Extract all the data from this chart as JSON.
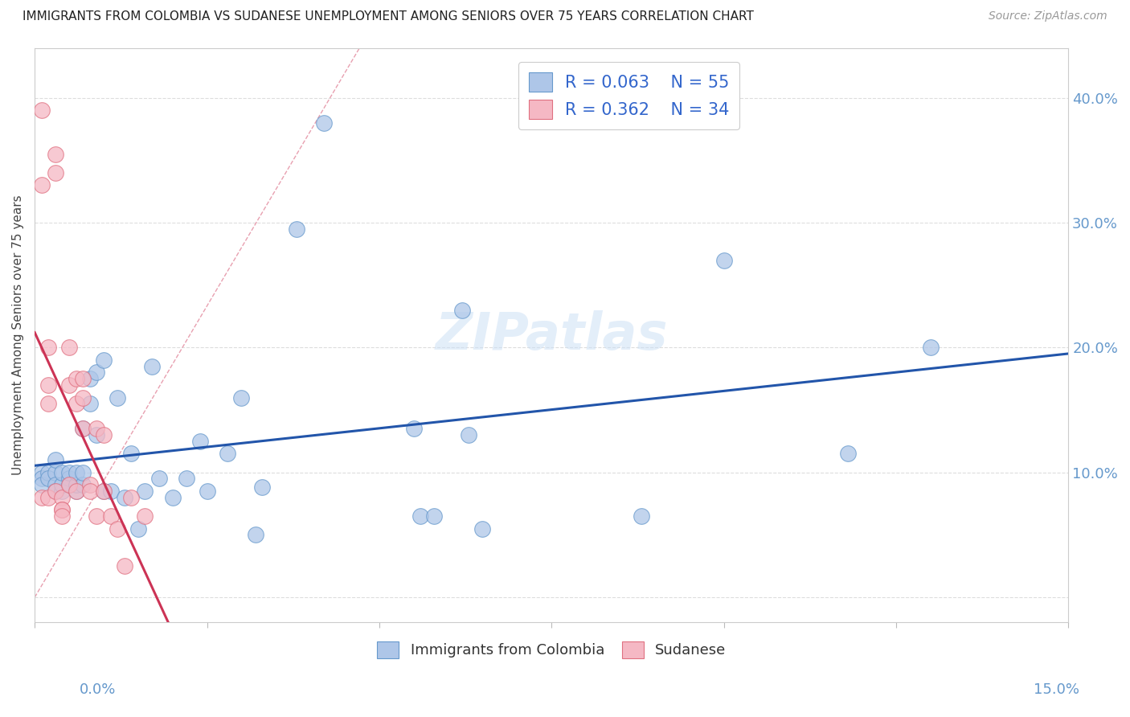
{
  "title": "IMMIGRANTS FROM COLOMBIA VS SUDANESE UNEMPLOYMENT AMONG SENIORS OVER 75 YEARS CORRELATION CHART",
  "source": "Source: ZipAtlas.com",
  "ylabel": "Unemployment Among Seniors over 75 years",
  "xlim": [
    0.0,
    0.15
  ],
  "ylim": [
    -0.02,
    0.44
  ],
  "colombia_color": "#aec6e8",
  "sudanese_color": "#f5b8c4",
  "colombia_edge_color": "#6699cc",
  "sudanese_edge_color": "#e07080",
  "colombia_line_color": "#2255aa",
  "sudanese_line_color": "#cc3355",
  "dashed_line_color": "#e8a0b0",
  "background_color": "#ffffff",
  "grid_color": "#dddddd",
  "right_tick_color": "#6699cc",
  "colombia_scatter_x": [
    0.001,
    0.001,
    0.001,
    0.002,
    0.002,
    0.003,
    0.003,
    0.003,
    0.003,
    0.004,
    0.004,
    0.004,
    0.005,
    0.005,
    0.005,
    0.006,
    0.006,
    0.006,
    0.007,
    0.007,
    0.007,
    0.008,
    0.008,
    0.009,
    0.009,
    0.01,
    0.01,
    0.011,
    0.012,
    0.013,
    0.014,
    0.015,
    0.016,
    0.017,
    0.018,
    0.02,
    0.022,
    0.024,
    0.025,
    0.028,
    0.03,
    0.032,
    0.033,
    0.038,
    0.042,
    0.055,
    0.056,
    0.058,
    0.062,
    0.063,
    0.065,
    0.088,
    0.1,
    0.118,
    0.13
  ],
  "colombia_scatter_y": [
    0.1,
    0.095,
    0.09,
    0.1,
    0.095,
    0.1,
    0.09,
    0.085,
    0.11,
    0.085,
    0.09,
    0.1,
    0.095,
    0.09,
    0.1,
    0.085,
    0.09,
    0.1,
    0.09,
    0.1,
    0.135,
    0.155,
    0.175,
    0.13,
    0.18,
    0.19,
    0.085,
    0.085,
    0.16,
    0.08,
    0.115,
    0.055,
    0.085,
    0.185,
    0.095,
    0.08,
    0.095,
    0.125,
    0.085,
    0.115,
    0.16,
    0.05,
    0.088,
    0.295,
    0.38,
    0.135,
    0.065,
    0.065,
    0.23,
    0.13,
    0.055,
    0.065,
    0.27,
    0.115,
    0.2
  ],
  "sudanese_scatter_x": [
    0.001,
    0.001,
    0.001,
    0.002,
    0.002,
    0.002,
    0.002,
    0.003,
    0.003,
    0.003,
    0.004,
    0.004,
    0.004,
    0.004,
    0.005,
    0.005,
    0.005,
    0.006,
    0.006,
    0.006,
    0.007,
    0.007,
    0.007,
    0.008,
    0.008,
    0.009,
    0.009,
    0.01,
    0.01,
    0.011,
    0.012,
    0.013,
    0.014,
    0.016
  ],
  "sudanese_scatter_y": [
    0.39,
    0.33,
    0.08,
    0.2,
    0.17,
    0.155,
    0.08,
    0.355,
    0.34,
    0.085,
    0.08,
    0.07,
    0.07,
    0.065,
    0.2,
    0.17,
    0.09,
    0.175,
    0.155,
    0.085,
    0.175,
    0.16,
    0.135,
    0.09,
    0.085,
    0.135,
    0.065,
    0.13,
    0.085,
    0.065,
    0.055,
    0.025,
    0.08,
    0.065
  ],
  "yticks": [
    0.0,
    0.1,
    0.2,
    0.3,
    0.4
  ],
  "ytick_labels": [
    "",
    "10.0%",
    "20.0%",
    "30.0%",
    "40.0%"
  ],
  "xtick_positions": [
    0.0,
    0.025,
    0.05,
    0.075,
    0.1,
    0.125,
    0.15
  ],
  "legend1_label": "R = 0.063    N = 55",
  "legend2_label": "R = 0.362    N = 34",
  "bot_legend1": "Immigrants from Colombia",
  "bot_legend2": "Sudanese"
}
